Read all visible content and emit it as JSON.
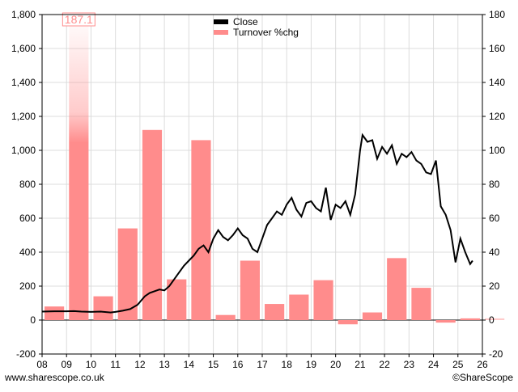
{
  "footer": {
    "left": "www.sharescope.co.uk",
    "right": "©ShareScope"
  },
  "chart_data": {
    "type": "bar",
    "legend": {
      "placement": "top-center",
      "items": [
        {
          "label": "Close",
          "color": "#000000"
        },
        {
          "label": "Turnover %chg",
          "color": "#ff8c8c"
        }
      ]
    },
    "x_ticks": [
      "08",
      "09",
      "10",
      "11",
      "12",
      "13",
      "14",
      "15",
      "16",
      "17",
      "18",
      "19",
      "20",
      "21",
      "22",
      "23",
      "24",
      "25",
      "26"
    ],
    "left_axis": {
      "ylim": [
        -200,
        1800
      ],
      "ticks": [
        "-200",
        "0",
        "200",
        "400",
        "600",
        "800",
        "1,000",
        "1,200",
        "1,400",
        "1,600",
        "1,800"
      ]
    },
    "right_axis": {
      "ylim": [
        -20,
        180
      ],
      "ticks": [
        "-20",
        "0",
        "20",
        "40",
        "60",
        "80",
        "100",
        "120",
        "140",
        "160",
        "180"
      ]
    },
    "grid": true,
    "series": [
      {
        "name": "Turnover %chg",
        "axis": "right",
        "color": "#ff8c8c",
        "categories": [
          "08",
          "09",
          "10",
          "11",
          "12",
          "13",
          "14",
          "15",
          "16",
          "17",
          "18",
          "19",
          "20",
          "21",
          "22",
          "23",
          "24",
          "25",
          "26"
        ],
        "values": [
          8,
          187.1,
          14,
          54,
          112,
          24,
          106,
          3,
          35,
          9.5,
          15,
          23.5,
          -2.5,
          4.5,
          36.5,
          19,
          -1.5,
          1,
          1
        ],
        "annotation": {
          "index": 1,
          "label": "187.1"
        }
      },
      {
        "name": "Close",
        "axis": "left",
        "color": "#000000",
        "x": [
          8.0,
          8.5,
          9.0,
          9.3,
          9.6,
          10.0,
          10.4,
          10.8,
          11.0,
          11.3,
          11.6,
          11.9,
          12.2,
          12.4,
          12.6,
          12.8,
          13.0,
          13.2,
          13.4,
          13.6,
          13.8,
          14.0,
          14.2,
          14.4,
          14.6,
          14.8,
          15.0,
          15.2,
          15.4,
          15.6,
          15.8,
          16.0,
          16.2,
          16.4,
          16.6,
          16.8,
          17.0,
          17.2,
          17.4,
          17.6,
          17.8,
          18.0,
          18.2,
          18.4,
          18.6,
          18.8,
          19.0,
          19.2,
          19.4,
          19.6,
          19.8,
          20.0,
          20.2,
          20.4,
          20.6,
          20.8,
          21.0,
          21.1,
          21.3,
          21.5,
          21.7,
          21.9,
          22.1,
          22.3,
          22.5,
          22.7,
          22.9,
          23.1,
          23.3,
          23.5,
          23.7,
          23.9,
          24.1,
          24.3,
          24.5,
          24.7,
          24.9,
          25.1,
          25.3,
          25.5,
          25.6
        ],
        "values": [
          50,
          52,
          52,
          53,
          50,
          48,
          50,
          45,
          48,
          55,
          65,
          90,
          140,
          160,
          170,
          180,
          175,
          200,
          240,
          280,
          320,
          350,
          380,
          420,
          440,
          400,
          480,
          530,
          490,
          470,
          500,
          540,
          500,
          480,
          420,
          400,
          480,
          560,
          600,
          640,
          620,
          680,
          720,
          650,
          610,
          690,
          700,
          660,
          640,
          780,
          590,
          680,
          660,
          700,
          620,
          740,
          1000,
          1090,
          1050,
          1060,
          950,
          1020,
          980,
          1030,
          920,
          980,
          960,
          990,
          940,
          920,
          870,
          860,
          940,
          670,
          620,
          530,
          340,
          480,
          400,
          330,
          350
        ]
      }
    ]
  }
}
